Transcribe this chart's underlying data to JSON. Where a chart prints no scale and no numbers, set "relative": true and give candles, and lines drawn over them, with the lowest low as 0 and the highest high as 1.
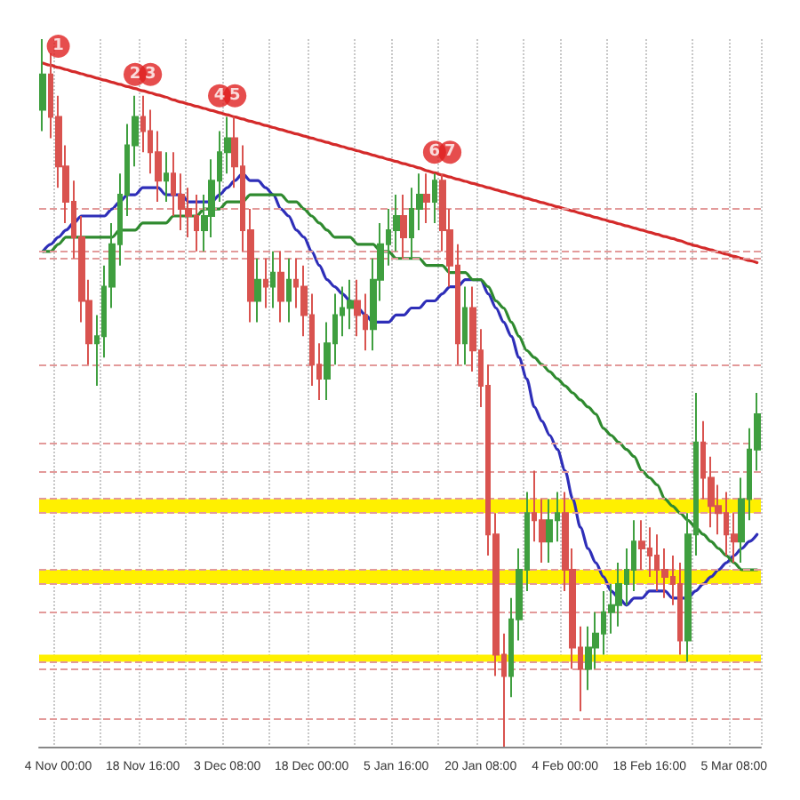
{
  "chart_data": {
    "type": "candlestick",
    "relative": true,
    "grid": "x",
    "legend": false,
    "categories": [
      null,
      null,
      "4 Nov 00:00",
      null,
      null,
      null,
      null,
      null,
      null,
      null,
      null,
      null,
      null,
      "18 Nov 16:00",
      null,
      null,
      null,
      null,
      null,
      null,
      null,
      null,
      null,
      null,
      "3 Dec 08:00",
      null,
      null,
      null,
      null,
      null,
      null,
      null,
      null,
      null,
      null,
      "18 Dec 00:00",
      null,
      null,
      null,
      null,
      null,
      null,
      null,
      null,
      null,
      null,
      "5 Jan 16:00",
      null,
      null,
      null,
      null,
      null,
      null,
      null,
      null,
      null,
      null,
      "20 Jan 08:00",
      null,
      null,
      null,
      null,
      null,
      null,
      null,
      null,
      null,
      null,
      "4 Feb 00:00",
      null,
      null,
      null,
      null,
      null,
      null,
      null,
      null,
      null,
      null,
      "18 Feb 16:00",
      null,
      null,
      null,
      null,
      null,
      null,
      null,
      null,
      null,
      null,
      "5 Mar 08:00",
      null,
      null,
      null
    ],
    "series": [
      {
        "ohlc": [
          [
            0.9,
            1,
            0.87,
            0.95
          ],
          [
            0.95,
            0.98,
            0.86,
            0.89
          ],
          [
            0.89,
            0.92,
            0.79,
            0.82
          ],
          [
            0.82,
            0.85,
            0.74,
            0.77
          ],
          [
            0.77,
            0.8,
            0.69,
            0.72
          ],
          [
            0.72,
            0.75,
            0.6,
            0.63
          ],
          [
            0.63,
            0.66,
            0.54,
            0.57
          ],
          [
            0.57,
            0.61,
            0.51,
            0.58
          ],
          [
            0.58,
            0.68,
            0.55,
            0.65
          ],
          [
            0.65,
            0.74,
            0.62,
            0.71
          ],
          [
            0.71,
            0.81,
            0.68,
            0.78
          ],
          [
            0.78,
            0.88,
            0.75,
            0.85
          ],
          [
            0.85,
            0.92,
            0.82,
            0.89
          ],
          [
            0.89,
            0.92,
            0.84,
            0.87
          ],
          [
            0.87,
            0.9,
            0.81,
            0.84
          ],
          [
            0.84,
            0.87,
            0.77,
            0.8
          ],
          [
            0.8,
            0.84,
            0.77,
            0.81
          ],
          [
            0.81,
            0.84,
            0.75,
            0.78
          ],
          [
            0.78,
            0.81,
            0.73,
            0.76
          ],
          [
            0.76,
            0.79,
            0.72,
            0.75
          ],
          [
            0.75,
            0.78,
            0.7,
            0.73
          ],
          [
            0.73,
            0.78,
            0.7,
            0.75
          ],
          [
            0.75,
            0.83,
            0.72,
            0.8
          ],
          [
            0.8,
            0.87,
            0.77,
            0.84
          ],
          [
            0.84,
            0.89,
            0.81,
            0.86
          ],
          [
            0.86,
            0.89,
            0.79,
            0.82
          ],
          [
            0.82,
            0.85,
            0.7,
            0.73
          ],
          [
            0.73,
            0.76,
            0.6,
            0.63
          ],
          [
            0.63,
            0.69,
            0.6,
            0.66
          ],
          [
            0.66,
            0.69,
            0.62,
            0.65
          ],
          [
            0.65,
            0.7,
            0.62,
            0.67
          ],
          [
            0.67,
            0.7,
            0.6,
            0.63
          ],
          [
            0.63,
            0.69,
            0.6,
            0.66
          ],
          [
            0.66,
            0.69,
            0.62,
            0.65
          ],
          [
            0.65,
            0.68,
            0.58,
            0.61
          ],
          [
            0.61,
            0.64,
            0.51,
            0.54
          ],
          [
            0.54,
            0.57,
            0.49,
            0.52
          ],
          [
            0.52,
            0.6,
            0.49,
            0.57
          ],
          [
            0.57,
            0.64,
            0.54,
            0.61
          ],
          [
            0.61,
            0.65,
            0.58,
            0.62
          ],
          [
            0.62,
            0.66,
            0.59,
            0.63
          ],
          [
            0.63,
            0.66,
            0.58,
            0.61
          ],
          [
            0.61,
            0.64,
            0.56,
            0.59
          ],
          [
            0.59,
            0.69,
            0.56,
            0.66
          ],
          [
            0.66,
            0.74,
            0.63,
            0.71
          ],
          [
            0.71,
            0.76,
            0.68,
            0.73
          ],
          [
            0.73,
            0.78,
            0.7,
            0.75
          ],
          [
            0.75,
            0.78,
            0.69,
            0.72
          ],
          [
            0.72,
            0.79,
            0.69,
            0.76
          ],
          [
            0.76,
            0.81,
            0.73,
            0.78
          ],
          [
            0.78,
            0.81,
            0.74,
            0.77
          ],
          [
            0.77,
            0.81,
            0.74,
            0.8
          ],
          [
            0.8,
            0.81,
            0.7,
            0.73
          ],
          [
            0.73,
            0.76,
            0.65,
            0.68
          ],
          [
            0.68,
            0.71,
            0.54,
            0.57
          ],
          [
            0.57,
            0.65,
            0.54,
            0.62
          ],
          [
            0.62,
            0.65,
            0.53,
            0.56
          ],
          [
            0.56,
            0.59,
            0.48,
            0.51
          ],
          [
            0.51,
            0.54,
            0.27,
            0.3
          ],
          [
            0.3,
            0.33,
            0.1,
            0.13
          ],
          [
            0.13,
            0.16,
            0,
            0.1
          ],
          [
            0.1,
            0.21,
            0.07,
            0.18
          ],
          [
            0.18,
            0.28,
            0.15,
            0.25
          ],
          [
            0.25,
            0.36,
            0.22,
            0.33
          ],
          [
            0.33,
            0.39,
            0.29,
            0.32
          ],
          [
            0.32,
            0.35,
            0.26,
            0.29
          ],
          [
            0.29,
            0.35,
            0.26,
            0.32
          ],
          [
            0.32,
            0.36,
            0.29,
            0.33
          ],
          [
            0.33,
            0.36,
            0.22,
            0.25
          ],
          [
            0.25,
            0.28,
            0.11,
            0.14
          ],
          [
            0.14,
            0.17,
            0.05,
            0.11
          ],
          [
            0.11,
            0.17,
            0.08,
            0.14
          ],
          [
            0.14,
            0.19,
            0.11,
            0.16
          ],
          [
            0.16,
            0.22,
            0.13,
            0.19
          ],
          [
            0.19,
            0.23,
            0.16,
            0.2
          ],
          [
            0.2,
            0.26,
            0.17,
            0.23
          ],
          [
            0.23,
            0.28,
            0.2,
            0.25
          ],
          [
            0.25,
            0.32,
            0.22,
            0.29
          ],
          [
            0.29,
            0.32,
            0.25,
            0.28
          ],
          [
            0.28,
            0.31,
            0.24,
            0.27
          ],
          [
            0.27,
            0.3,
            0.22,
            0.25
          ],
          [
            0.25,
            0.28,
            0.21,
            0.24
          ],
          [
            0.24,
            0.27,
            0.2,
            0.23
          ],
          [
            0.23,
            0.26,
            0.13,
            0.15
          ],
          [
            0.15,
            0.33,
            0.12,
            0.3
          ],
          [
            0.3,
            0.5,
            0.27,
            0.43
          ],
          [
            0.43,
            0.46,
            0.35,
            0.38
          ],
          [
            0.38,
            0.41,
            0.31,
            0.34
          ],
          [
            0.34,
            0.37,
            0.3,
            0.33
          ],
          [
            0.33,
            0.36,
            0.27,
            0.3
          ],
          [
            0.3,
            0.33,
            0.26,
            0.29
          ],
          [
            0.29,
            0.38,
            0.26,
            0.35
          ],
          [
            0.35,
            0.45,
            0.32,
            0.42
          ],
          [
            0.42,
            0.5,
            0.39,
            0.47
          ]
        ],
        "colors": [
          "#3f9f3f",
          "#d9534f",
          "#d9534f",
          "#d9534f",
          "#d9534f",
          "#d9534f",
          "#d9534f",
          "#3f9f3f",
          "#3f9f3f",
          "#3f9f3f",
          "#3f9f3f",
          "#3f9f3f",
          "#3f9f3f",
          "#d9534f",
          "#d9534f",
          "#d9534f",
          "#3f9f3f",
          "#d9534f",
          "#d9534f",
          "#d9534f",
          "#d9534f",
          "#3f9f3f",
          "#3f9f3f",
          "#3f9f3f",
          "#3f9f3f",
          "#d9534f",
          "#d9534f",
          "#d9534f",
          "#3f9f3f",
          "#d9534f",
          "#3f9f3f",
          "#d9534f",
          "#3f9f3f",
          "#d9534f",
          "#d9534f",
          "#d9534f",
          "#d9534f",
          "#3f9f3f",
          "#3f9f3f",
          "#3f9f3f",
          "#3f9f3f",
          "#d9534f",
          "#d9534f",
          "#3f9f3f",
          "#3f9f3f",
          "#3f9f3f",
          "#3f9f3f",
          "#d9534f",
          "#3f9f3f",
          "#3f9f3f",
          "#d9534f",
          "#3f9f3f",
          "#d9534f",
          "#d9534f",
          "#d9534f",
          "#3f9f3f",
          "#d9534f",
          "#d9534f",
          "#d9534f",
          "#d9534f",
          "#d9534f",
          "#3f9f3f",
          "#3f9f3f",
          "#3f9f3f",
          "#d9534f",
          "#d9534f",
          "#3f9f3f",
          "#3f9f3f",
          "#d9534f",
          "#d9534f",
          "#d9534f",
          "#3f9f3f",
          "#3f9f3f",
          "#3f9f3f",
          "#3f9f3f",
          "#3f9f3f",
          "#3f9f3f",
          "#3f9f3f",
          "#d9534f",
          "#d9534f",
          "#d9534f",
          "#d9534f",
          "#d9534f",
          "#d9534f",
          "#3f9f3f",
          "#3f9f3f",
          "#d9534f",
          "#d9534f",
          "#d9534f",
          "#d9534f",
          "#d9534f",
          "#3f9f3f",
          "#3f9f3f",
          "#3f9f3f"
        ]
      },
      {
        "type": "line",
        "color": "#2e2eb8",
        "values": [
          0.7,
          0.71,
          0.72,
          0.73,
          0.74,
          0.75,
          0.75,
          0.75,
          0.75,
          0.76,
          0.77,
          0.78,
          0.78,
          0.79,
          0.79,
          0.79,
          0.78,
          0.78,
          0.78,
          0.77,
          0.77,
          0.77,
          0.77,
          0.78,
          0.79,
          0.8,
          0.81,
          0.8,
          0.8,
          0.79,
          0.78,
          0.76,
          0.75,
          0.73,
          0.72,
          0.7,
          0.68,
          0.66,
          0.65,
          0.64,
          0.63,
          0.62,
          0.61,
          0.6,
          0.6,
          0.6,
          0.61,
          0.61,
          0.62,
          0.62,
          0.63,
          0.63,
          0.64,
          0.65,
          0.65,
          0.66,
          0.66,
          0.66,
          0.64,
          0.62,
          0.6,
          0.58,
          0.55,
          0.52,
          0.48,
          0.46,
          0.44,
          0.42,
          0.39,
          0.35,
          0.31,
          0.28,
          0.26,
          0.24,
          0.22,
          0.21,
          0.2,
          0.21,
          0.21,
          0.22,
          0.22,
          0.22,
          0.21,
          0.21,
          0.21,
          0.22,
          0.23,
          0.24,
          0.25,
          0.26,
          0.27,
          0.28,
          0.29,
          0.3
        ]
      },
      {
        "type": "line",
        "color": "#2f8a2f",
        "values": [
          0.7,
          0.7,
          0.71,
          0.72,
          0.72,
          0.72,
          0.72,
          0.72,
          0.72,
          0.72,
          0.73,
          0.73,
          0.73,
          0.74,
          0.74,
          0.74,
          0.74,
          0.75,
          0.75,
          0.75,
          0.75,
          0.76,
          0.76,
          0.76,
          0.77,
          0.77,
          0.77,
          0.78,
          0.78,
          0.78,
          0.78,
          0.78,
          0.77,
          0.77,
          0.76,
          0.75,
          0.74,
          0.73,
          0.72,
          0.72,
          0.72,
          0.71,
          0.71,
          0.71,
          0.7,
          0.7,
          0.69,
          0.69,
          0.69,
          0.69,
          0.68,
          0.68,
          0.68,
          0.67,
          0.67,
          0.67,
          0.66,
          0.66,
          0.65,
          0.63,
          0.62,
          0.6,
          0.58,
          0.56,
          0.55,
          0.54,
          0.53,
          0.52,
          0.51,
          0.5,
          0.49,
          0.48,
          0.47,
          0.45,
          0.44,
          0.43,
          0.42,
          0.41,
          0.39,
          0.38,
          0.37,
          0.35,
          0.34,
          0.33,
          0.32,
          0.31,
          0.3,
          0.29,
          0.28,
          0.27,
          0.26,
          0.25,
          0.25,
          0.25
        ]
      },
      {
        "type": "line",
        "color": "#d42a2a",
        "values": [
          0.966,
          0.963,
          0.96,
          0.957,
          0.954,
          0.951,
          0.948,
          0.945,
          0.942,
          0.939,
          0.936,
          0.933,
          0.93,
          0.927,
          0.924,
          0.921,
          0.918,
          0.914,
          0.911,
          0.908,
          0.905,
          0.902,
          0.899,
          0.896,
          0.893,
          0.89,
          0.887,
          0.884,
          0.881,
          0.878,
          0.875,
          0.872,
          0.869,
          0.866,
          0.863,
          0.86,
          0.857,
          0.854,
          0.851,
          0.848,
          0.845,
          0.842,
          0.839,
          0.836,
          0.833,
          0.83,
          0.827,
          0.824,
          0.821,
          0.818,
          0.814,
          0.811,
          0.808,
          0.805,
          0.802,
          0.799,
          0.796,
          0.793,
          0.79,
          0.787,
          0.784,
          0.781,
          0.778,
          0.775,
          0.772,
          0.769,
          0.766,
          0.763,
          0.76,
          0.757,
          0.754,
          0.751,
          0.748,
          0.745,
          0.742,
          0.739,
          0.736,
          0.733,
          0.73,
          0.727,
          0.724,
          0.721,
          0.718,
          0.715,
          0.711,
          0.708,
          0.705,
          0.702,
          0.699,
          0.696,
          0.693,
          0.69,
          0.687,
          0.684
        ]
      },
      {
        "type": "scatter",
        "name": "1",
        "color": "#e02020",
        "marker": "circle",
        "values": [
          null,
          null,
          0.99,
          null,
          null,
          null,
          null,
          null,
          null,
          null,
          null,
          null,
          null,
          null,
          null,
          null,
          null,
          null,
          null,
          null,
          null,
          null,
          null,
          null,
          null,
          null,
          null,
          null,
          null,
          null,
          null,
          null,
          null,
          null,
          null,
          null,
          null,
          null,
          null,
          null,
          null,
          null,
          null,
          null,
          null,
          null,
          null,
          null,
          null,
          null,
          null,
          null,
          null,
          null,
          null,
          null,
          null,
          null,
          null,
          null,
          null,
          null,
          null,
          null,
          null,
          null,
          null,
          null,
          null,
          null,
          null,
          null,
          null,
          null,
          null,
          null,
          null,
          null,
          null,
          null,
          null,
          null,
          null,
          null,
          null,
          null,
          null,
          null,
          null,
          null,
          null,
          null,
          null,
          null
        ]
      },
      {
        "type": "scatter",
        "name": "2",
        "color": "#e02020",
        "marker": "circle",
        "values": [
          null,
          null,
          null,
          null,
          null,
          null,
          null,
          null,
          null,
          null,
          null,
          null,
          0.95,
          null,
          null,
          null,
          null,
          null,
          null,
          null,
          null,
          null,
          null,
          null,
          null,
          null,
          null,
          null,
          null,
          null,
          null,
          null,
          null,
          null,
          null,
          null,
          null,
          null,
          null,
          null,
          null,
          null,
          null,
          null,
          null,
          null,
          null,
          null,
          null,
          null,
          null,
          null,
          null,
          null,
          null,
          null,
          null,
          null,
          null,
          null,
          null,
          null,
          null,
          null,
          null,
          null,
          null,
          null,
          null,
          null,
          null,
          null,
          null,
          null,
          null,
          null,
          null,
          null,
          null,
          null,
          null,
          null,
          null,
          null,
          null,
          null,
          null,
          null,
          null,
          null,
          null,
          null,
          null,
          null
        ]
      },
      {
        "type": "scatter",
        "name": "3",
        "color": "#e02020",
        "marker": "circle",
        "values": [
          null,
          null,
          null,
          null,
          null,
          null,
          null,
          null,
          null,
          null,
          null,
          null,
          null,
          null,
          0.95,
          null,
          null,
          null,
          null,
          null,
          null,
          null,
          null,
          null,
          null,
          null,
          null,
          null,
          null,
          null,
          null,
          null,
          null,
          null,
          null,
          null,
          null,
          null,
          null,
          null,
          null,
          null,
          null,
          null,
          null,
          null,
          null,
          null,
          null,
          null,
          null,
          null,
          null,
          null,
          null,
          null,
          null,
          null,
          null,
          null,
          null,
          null,
          null,
          null,
          null,
          null,
          null,
          null,
          null,
          null,
          null,
          null,
          null,
          null,
          null,
          null,
          null,
          null,
          null,
          null,
          null,
          null,
          null,
          null,
          null,
          null,
          null,
          null,
          null,
          null,
          null,
          null,
          null,
          null
        ]
      },
      {
        "type": "scatter",
        "name": "4",
        "color": "#e02020",
        "marker": "circle",
        "values": [
          null,
          null,
          null,
          null,
          null,
          null,
          null,
          null,
          null,
          null,
          null,
          null,
          null,
          null,
          null,
          null,
          null,
          null,
          null,
          null,
          null,
          null,
          null,
          0.92,
          null,
          null,
          null,
          null,
          null,
          null,
          null,
          null,
          null,
          null,
          null,
          null,
          null,
          null,
          null,
          null,
          null,
          null,
          null,
          null,
          null,
          null,
          null,
          null,
          null,
          null,
          null,
          null,
          null,
          null,
          null,
          null,
          null,
          null,
          null,
          null,
          null,
          null,
          null,
          null,
          null,
          null,
          null,
          null,
          null,
          null,
          null,
          null,
          null,
          null,
          null,
          null,
          null,
          null,
          null,
          null,
          null,
          null,
          null,
          null,
          null,
          null,
          null,
          null,
          null,
          null,
          null,
          null,
          null,
          null
        ]
      },
      {
        "type": "scatter",
        "name": "5",
        "color": "#e02020",
        "marker": "circle",
        "values": [
          null,
          null,
          null,
          null,
          null,
          null,
          null,
          null,
          null,
          null,
          null,
          null,
          null,
          null,
          null,
          null,
          null,
          null,
          null,
          null,
          null,
          null,
          null,
          null,
          null,
          0.92,
          null,
          null,
          null,
          null,
          null,
          null,
          null,
          null,
          null,
          null,
          null,
          null,
          null,
          null,
          null,
          null,
          null,
          null,
          null,
          null,
          null,
          null,
          null,
          null,
          null,
          null,
          null,
          null,
          null,
          null,
          null,
          null,
          null,
          null,
          null,
          null,
          null,
          null,
          null,
          null,
          null,
          null,
          null,
          null,
          null,
          null,
          null,
          null,
          null,
          null,
          null,
          null,
          null,
          null,
          null,
          null,
          null,
          null,
          null,
          null,
          null,
          null,
          null,
          null,
          null,
          null,
          null,
          null
        ]
      },
      {
        "type": "scatter",
        "name": "6",
        "color": "#e02020",
        "marker": "circle",
        "values": [
          null,
          null,
          null,
          null,
          null,
          null,
          null,
          null,
          null,
          null,
          null,
          null,
          null,
          null,
          null,
          null,
          null,
          null,
          null,
          null,
          null,
          null,
          null,
          null,
          null,
          null,
          null,
          null,
          null,
          null,
          null,
          null,
          null,
          null,
          null,
          null,
          null,
          null,
          null,
          null,
          null,
          null,
          null,
          null,
          null,
          null,
          null,
          null,
          null,
          null,
          null,
          0.84,
          null,
          null,
          null,
          null,
          null,
          null,
          null,
          null,
          null,
          null,
          null,
          null,
          null,
          null,
          null,
          null,
          null,
          null,
          null,
          null,
          null,
          null,
          null,
          null,
          null,
          null,
          null,
          null,
          null,
          null,
          null,
          null,
          null,
          null,
          null,
          null,
          null,
          null,
          null,
          null,
          null,
          null
        ]
      },
      {
        "type": "scatter",
        "name": "7",
        "color": "#e02020",
        "marker": "circle",
        "values": [
          null,
          null,
          null,
          null,
          null,
          null,
          null,
          null,
          null,
          null,
          null,
          null,
          null,
          null,
          null,
          null,
          null,
          null,
          null,
          null,
          null,
          null,
          null,
          null,
          null,
          null,
          null,
          null,
          null,
          null,
          null,
          null,
          null,
          null,
          null,
          null,
          null,
          null,
          null,
          null,
          null,
          null,
          null,
          null,
          null,
          null,
          null,
          null,
          null,
          null,
          null,
          null,
          null,
          0.84,
          null,
          null,
          null,
          null,
          null,
          null,
          null,
          null,
          null,
          null,
          null,
          null,
          null,
          null,
          null,
          null,
          null,
          null,
          null,
          null,
          null,
          null,
          null,
          null,
          null,
          null,
          null,
          null,
          null,
          null,
          null,
          null,
          null,
          null,
          null,
          null,
          null,
          null,
          null,
          null
        ]
      }
    ],
    "ref_lines": [
      {
        "axis": "y",
        "value": 0.76,
        "color": "#e39a9a",
        "line_style": "dashed"
      },
      {
        "axis": "y",
        "value": 0.7,
        "color": "#e39a9a",
        "line_style": "dashed"
      },
      {
        "axis": "y",
        "value": 0.69,
        "color": "#e39a9a",
        "line_style": "dashed"
      },
      {
        "axis": "y",
        "value": 0.54,
        "color": "#e39a9a",
        "line_style": "dashed"
      },
      {
        "axis": "y",
        "value": 0.43,
        "color": "#e39a9a",
        "line_style": "dashed"
      },
      {
        "axis": "y",
        "value": 0.39,
        "color": "#e39a9a",
        "line_style": "dashed"
      },
      {
        "axis": "y",
        "value": 0.35,
        "color": "#e39a9a",
        "line_style": "dashed"
      },
      {
        "axis": "y",
        "value": 0.33,
        "color": "#e39a9a",
        "line_style": "dashed"
      },
      {
        "axis": "y",
        "value": 0.25,
        "color": "#e39a9a",
        "line_style": "dashed"
      },
      {
        "axis": "y",
        "value": 0.23,
        "color": "#e39a9a",
        "line_style": "dashed"
      },
      {
        "axis": "y",
        "value": 0.19,
        "color": "#e39a9a",
        "line_style": "dashed"
      },
      {
        "axis": "y",
        "value": 0.12,
        "color": "#e39a9a",
        "line_style": "dashed"
      },
      {
        "axis": "y",
        "value": 0.11,
        "color": "#e39a9a",
        "line_style": "dashed"
      },
      {
        "axis": "y",
        "value": 0.04,
        "color": "#e39a9a",
        "line_style": "dashed"
      }
    ],
    "bands": [
      {
        "axis": "y",
        "from": 0.33,
        "to": 0.35,
        "color": "#fff000"
      },
      {
        "axis": "y",
        "from": 0.23,
        "to": 0.25,
        "color": "#fff000"
      },
      {
        "axis": "y",
        "from": 0.12,
        "to": 0.13,
        "color": "#fff000"
      }
    ]
  }
}
